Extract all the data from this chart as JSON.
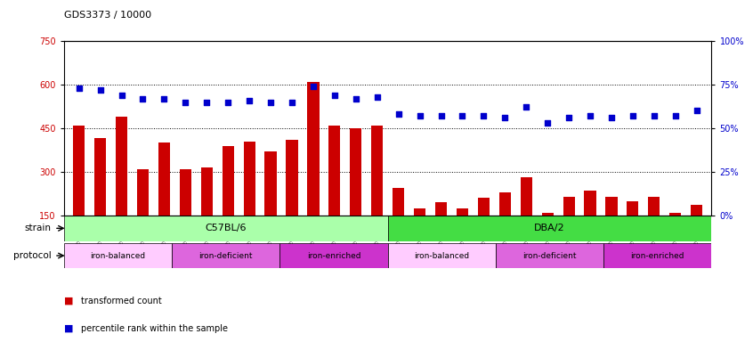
{
  "title": "GDS3373 / 10000",
  "samples": [
    "GSM262762",
    "GSM262765",
    "GSM262768",
    "GSM262769",
    "GSM262770",
    "GSM262796",
    "GSM262797",
    "GSM262798",
    "GSM262799",
    "GSM262800",
    "GSM262771",
    "GSM262772",
    "GSM262773",
    "GSM262794",
    "GSM262795",
    "GSM262817",
    "GSM262819",
    "GSM262820",
    "GSM262839",
    "GSM262840",
    "GSM262950",
    "GSM262951",
    "GSM262952",
    "GSM262953",
    "GSM262954",
    "GSM262841",
    "GSM262842",
    "GSM262843",
    "GSM262844",
    "GSM262845"
  ],
  "bar_values": [
    460,
    415,
    490,
    310,
    400,
    310,
    315,
    390,
    405,
    370,
    410,
    610,
    460,
    450,
    460,
    245,
    175,
    195,
    175,
    210,
    230,
    280,
    160,
    215,
    235,
    215,
    200,
    215,
    160,
    185
  ],
  "percentile_values": [
    73,
    72,
    69,
    67,
    67,
    65,
    65,
    65,
    66,
    65,
    65,
    74,
    69,
    67,
    68,
    58,
    57,
    57,
    57,
    57,
    56,
    62,
    53,
    56,
    57,
    56,
    57,
    57,
    57,
    60
  ],
  "bar_color": "#cc0000",
  "percentile_color": "#0000cc",
  "ylim_left": [
    150,
    750
  ],
  "ylim_right": [
    0,
    100
  ],
  "yticks_left": [
    150,
    300,
    450,
    600,
    750
  ],
  "yticks_right": [
    0,
    25,
    50,
    75,
    100
  ],
  "strain_groups": [
    {
      "label": "C57BL/6",
      "start": 0,
      "end": 15,
      "color": "#aaffaa"
    },
    {
      "label": "DBA/2",
      "start": 15,
      "end": 30,
      "color": "#44dd44"
    }
  ],
  "protocol_groups": [
    {
      "label": "iron-balanced",
      "start": 0,
      "end": 5,
      "color": "#ffccff"
    },
    {
      "label": "iron-deficient",
      "start": 5,
      "end": 10,
      "color": "#dd66dd"
    },
    {
      "label": "iron-enriched",
      "start": 10,
      "end": 15,
      "color": "#cc33cc"
    },
    {
      "label": "iron-balanced",
      "start": 15,
      "end": 20,
      "color": "#ffccff"
    },
    {
      "label": "iron-deficient",
      "start": 20,
      "end": 25,
      "color": "#dd66dd"
    },
    {
      "label": "iron-enriched",
      "start": 25,
      "end": 30,
      "color": "#cc33cc"
    }
  ],
  "fig_bg": "#ffffff",
  "plot_bg": "#ffffff",
  "grid_color": "#000000",
  "left_ycolor": "#cc0000",
  "right_ycolor": "#0000cc"
}
